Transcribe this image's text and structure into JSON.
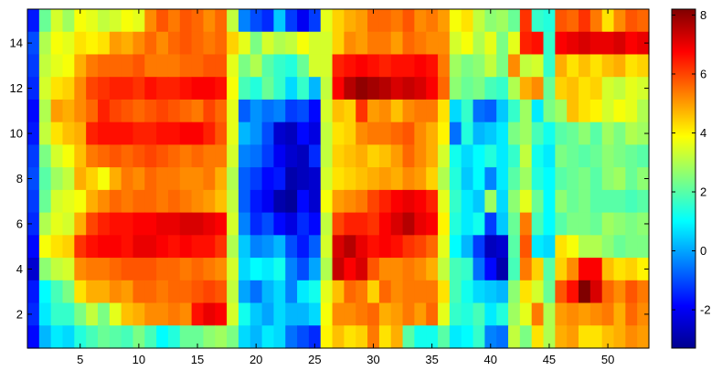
{
  "chart_data": {
    "type": "heatmap",
    "title": "",
    "xlabel": "",
    "ylabel": "",
    "x_range": [
      1,
      53
    ],
    "y_range": [
      1,
      15
    ],
    "xlim": [
      0.5,
      53.5
    ],
    "ylim": [
      0.5,
      15.5
    ],
    "x_ticks": [
      5,
      10,
      15,
      20,
      25,
      30,
      35,
      40,
      45,
      50
    ],
    "y_ticks": [
      2,
      4,
      6,
      8,
      10,
      12,
      14
    ],
    "colorbar": {
      "colormap": "jet",
      "range": [
        -3.3,
        8.2
      ],
      "ticks": [
        -2,
        0,
        2,
        4,
        6,
        8
      ]
    },
    "grid": false,
    "legend": "none",
    "region_note_values": {
      "rows_top_to_bottom": "y=15 .. y=1",
      "blocks": [
        {
          "x": [
            1,
            1
          ],
          "y": [
            1,
            15
          ],
          "level": -1.5
        },
        {
          "x": [
            2,
            4
          ],
          "y": [
            1,
            15
          ],
          "level": 3.0
        },
        {
          "x": [
            5,
            18
          ],
          "y": [
            1,
            15
          ],
          "level": 6.0
        },
        {
          "x": [
            19,
            26
          ],
          "y": [
            1,
            15
          ],
          "level": 0.0
        },
        {
          "x": [
            27,
            36
          ],
          "y": [
            1,
            15
          ],
          "level": 5.5
        },
        {
          "x": [
            37,
            45
          ],
          "y": [
            1,
            15
          ],
          "level": 1.5
        },
        {
          "x": [
            46,
            53
          ],
          "y": [
            1,
            15
          ],
          "level": 3.0
        }
      ]
    },
    "z": [
      [
        -1.6,
        2.2,
        3.4,
        2.8,
        3.8,
        3.6,
        3.2,
        3.4,
        3.8,
        3.6,
        5.2,
        5.8,
        5.4,
        5.8,
        5.6,
        5.2,
        5.6,
        3.2,
        -0.4,
        -1.0,
        -1.4,
        0.4,
        -1.2,
        -2.0,
        -1.2,
        3.6,
        4.4,
        4.8,
        5.0,
        5.6,
        5.6,
        5.4,
        5.8,
        5.2,
        5.4,
        5.0,
        3.8,
        4.2,
        3.2,
        2.6,
        2.8,
        2.2,
        6.2,
        1.6,
        1.4,
        5.8,
        5.6,
        6.2,
        5.4,
        4.2,
        5.2,
        5.8,
        5.6
      ],
      [
        -1.0,
        3.0,
        3.8,
        3.6,
        4.2,
        4.0,
        4.2,
        5.0,
        4.8,
        5.2,
        5.6,
        5.2,
        5.6,
        5.8,
        5.6,
        5.4,
        5.6,
        4.4,
        3.6,
        2.4,
        3.4,
        3.0,
        3.2,
        3.8,
        3.4,
        3.4,
        4.4,
        5.2,
        5.0,
        5.4,
        5.4,
        5.0,
        5.6,
        5.4,
        5.2,
        5.2,
        3.4,
        3.8,
        3.0,
        3.6,
        2.4,
        3.6,
        6.4,
        6.6,
        1.6,
        6.8,
        7.0,
        7.2,
        7.0,
        7.0,
        7.2,
        6.8,
        7.0
      ],
      [
        -1.2,
        3.2,
        3.6,
        3.8,
        4.8,
        5.4,
        5.6,
        5.6,
        5.6,
        5.8,
        5.4,
        5.4,
        5.4,
        5.6,
        5.6,
        5.8,
        5.8,
        3.6,
        2.4,
        3.0,
        2.0,
        1.6,
        1.4,
        2.2,
        3.4,
        3.4,
        6.4,
        6.6,
        6.8,
        6.6,
        6.4,
        6.6,
        6.6,
        6.8,
        6.6,
        5.4,
        2.8,
        2.4,
        2.6,
        3.2,
        2.4,
        5.2,
        3.2,
        3.4,
        1.6,
        4.8,
        4.2,
        4.6,
        4.2,
        4.6,
        4.8,
        4.2,
        4.4
      ],
      [
        -1.4,
        3.4,
        4.2,
        4.4,
        5.2,
        6.0,
        6.2,
        6.4,
        6.4,
        6.2,
        6.6,
        6.4,
        6.4,
        6.6,
        6.8,
        6.8,
        6.6,
        3.8,
        1.8,
        1.4,
        2.2,
        1.6,
        0.6,
        1.6,
        0.2,
        3.2,
        6.8,
        7.6,
        8.0,
        7.8,
        7.6,
        7.2,
        7.4,
        7.2,
        6.8,
        5.6,
        2.6,
        2.2,
        2.4,
        1.8,
        1.6,
        3.0,
        4.8,
        5.2,
        2.2,
        4.4,
        4.6,
        4.2,
        4.4,
        3.4,
        3.2,
        3.6,
        3.4
      ],
      [
        -1.8,
        3.0,
        5.0,
        4.8,
        5.2,
        5.6,
        6.4,
        6.0,
        5.8,
        5.6,
        5.8,
        6.0,
        5.8,
        5.6,
        5.4,
        6.0,
        5.6,
        3.6,
        -0.8,
        -0.2,
        -0.6,
        -0.4,
        -1.2,
        -1.0,
        -1.8,
        3.4,
        4.6,
        4.4,
        6.2,
        5.0,
        5.2,
        4.6,
        5.2,
        5.4,
        5.4,
        4.2,
        0.6,
        1.6,
        -0.6,
        -0.8,
        0.4,
        1.6,
        2.8,
        0.8,
        2.4,
        2.8,
        4.6,
        4.2,
        4.0,
        3.4,
        3.8,
        3.6,
        3.0
      ],
      [
        -1.6,
        3.2,
        4.2,
        4.6,
        4.8,
        6.4,
        6.6,
        6.6,
        6.6,
        6.4,
        6.4,
        6.6,
        6.6,
        6.8,
        6.8,
        6.4,
        5.8,
        3.6,
        0.2,
        -0.2,
        -1.0,
        -2.4,
        -2.6,
        -1.8,
        -2.2,
        3.2,
        4.2,
        4.4,
        5.2,
        5.4,
        5.4,
        5.6,
        5.8,
        5.2,
        4.8,
        4.0,
        -0.6,
        1.4,
        0.2,
        0.4,
        0.8,
        2.4,
        2.8,
        1.8,
        1.2,
        2.0,
        2.2,
        2.6,
        2.0,
        2.8,
        2.4,
        3.0,
        2.8
      ],
      [
        -1.2,
        2.4,
        3.4,
        3.8,
        4.6,
        5.4,
        5.6,
        5.8,
        5.6,
        5.8,
        6.0,
        5.8,
        5.6,
        5.4,
        5.6,
        5.4,
        5.4,
        3.4,
        -0.4,
        -0.6,
        -1.2,
        -2.0,
        -2.4,
        -2.6,
        -1.4,
        3.2,
        4.4,
        4.6,
        4.8,
        4.4,
        4.6,
        5.0,
        5.6,
        5.2,
        4.8,
        3.4,
        1.2,
        0.6,
        1.0,
        1.4,
        0.8,
        1.6,
        3.2,
        1.2,
        0.8,
        2.4,
        2.2,
        2.0,
        2.2,
        2.6,
        2.4,
        2.2,
        2.0
      ],
      [
        -1.0,
        2.0,
        2.8,
        3.2,
        4.8,
        4.4,
        3.8,
        4.8,
        5.4,
        5.2,
        5.6,
        5.4,
        5.4,
        5.2,
        5.2,
        5.4,
        4.8,
        3.0,
        -0.8,
        -1.2,
        -1.8,
        -1.6,
        -2.8,
        -2.6,
        -2.4,
        3.4,
        4.2,
        4.4,
        4.6,
        4.8,
        5.0,
        4.8,
        5.2,
        5.0,
        4.4,
        3.0,
        1.4,
        0.4,
        1.0,
        -0.4,
        0.8,
        2.0,
        2.8,
        1.4,
        1.0,
        2.0,
        2.2,
        2.4,
        2.0,
        2.6,
        2.8,
        2.2,
        2.6
      ],
      [
        -1.2,
        2.2,
        3.4,
        3.6,
        3.8,
        4.8,
        5.2,
        5.6,
        5.4,
        5.6,
        5.6,
        5.4,
        5.6,
        5.4,
        5.2,
        5.0,
        4.6,
        3.2,
        -0.8,
        -1.6,
        -2.0,
        -2.8,
        -3.0,
        -1.8,
        -2.4,
        3.8,
        5.0,
        5.2,
        5.4,
        6.0,
        6.4,
        6.8,
        7.0,
        6.8,
        6.4,
        3.6,
        1.6,
        0.8,
        0.4,
        2.8,
        0.6,
        2.6,
        3.6,
        2.2,
        1.0,
        2.6,
        2.2,
        2.4,
        2.0,
        2.0,
        2.0,
        1.8,
        2.0
      ],
      [
        -1.4,
        3.0,
        3.6,
        3.4,
        4.8,
        6.0,
        6.4,
        6.6,
        6.6,
        6.8,
        6.8,
        7.0,
        7.0,
        7.2,
        7.2,
        7.0,
        6.8,
        3.4,
        -0.4,
        -1.4,
        -1.0,
        -1.8,
        -2.2,
        -1.4,
        -1.8,
        3.2,
        6.0,
        6.4,
        6.4,
        6.2,
        6.8,
        7.2,
        7.6,
        7.0,
        6.8,
        4.0,
        1.4,
        0.8,
        1.2,
        -1.2,
        0.4,
        2.2,
        5.4,
        1.8,
        1.0,
        2.0,
        2.4,
        2.4,
        2.2,
        2.8,
        2.6,
        2.4,
        2.6
      ],
      [
        -1.8,
        3.8,
        4.2,
        4.4,
        6.2,
        6.6,
        6.8,
        6.8,
        6.6,
        7.0,
        7.0,
        6.8,
        6.6,
        6.8,
        6.6,
        6.6,
        6.2,
        3.0,
        0.4,
        -0.4,
        -0.2,
        0.2,
        -1.0,
        -1.6,
        -0.8,
        3.4,
        7.2,
        7.6,
        7.0,
        6.6,
        6.8,
        6.6,
        6.2,
        6.0,
        5.6,
        3.6,
        1.0,
        0.2,
        -1.2,
        -2.6,
        -2.4,
        2.0,
        5.8,
        0.8,
        0.6,
        4.2,
        3.8,
        3.0,
        3.0,
        2.6,
        2.2,
        2.4,
        2.4
      ],
      [
        -2.4,
        2.6,
        3.2,
        3.4,
        5.2,
        5.4,
        5.4,
        5.6,
        5.8,
        5.8,
        5.8,
        5.6,
        5.6,
        5.4,
        5.6,
        5.4,
        5.2,
        3.4,
        0.6,
        1.0,
        0.8,
        1.2,
        -0.4,
        -1.0,
        0.0,
        3.0,
        7.4,
        6.8,
        7.2,
        5.8,
        5.2,
        5.2,
        5.4,
        5.2,
        4.8,
        3.2,
        1.8,
        1.6,
        -0.6,
        -1.8,
        -2.8,
        1.8,
        5.4,
        4.4,
        2.0,
        4.4,
        5.2,
        6.8,
        6.8,
        4.6,
        4.2,
        4.4,
        4.0
      ],
      [
        -1.6,
        1.0,
        1.8,
        2.4,
        4.2,
        4.8,
        4.8,
        5.2,
        5.0,
        5.6,
        5.6,
        5.4,
        5.6,
        5.6,
        5.8,
        6.0,
        5.8,
        3.2,
        0.0,
        -0.6,
        0.2,
        0.6,
        -0.4,
        0.8,
        1.2,
        3.6,
        4.6,
        5.6,
        5.4,
        4.4,
        5.6,
        5.2,
        5.4,
        5.4,
        5.4,
        4.2,
        1.8,
        1.2,
        0.6,
        0.4,
        0.2,
        2.6,
        4.2,
        3.4,
        2.2,
        5.8,
        6.6,
        8.2,
        7.2,
        5.6,
        5.2,
        5.8,
        5.4
      ],
      [
        -1.4,
        0.8,
        1.6,
        1.6,
        2.4,
        3.2,
        2.4,
        3.6,
        4.6,
        4.8,
        5.2,
        5.2,
        5.4,
        5.2,
        6.6,
        7.0,
        6.8,
        3.4,
        1.2,
        0.4,
        0.0,
        0.6,
        0.2,
        0.2,
        0.6,
        3.8,
        5.2,
        5.2,
        5.4,
        5.6,
        4.8,
        5.0,
        5.4,
        5.0,
        5.6,
        3.6,
        1.6,
        1.4,
        1.8,
        0.8,
        1.4,
        2.8,
        3.6,
        5.4,
        3.0,
        5.0,
        5.2,
        5.0,
        5.2,
        5.4,
        4.8,
        5.6,
        5.2
      ],
      [
        -1.8,
        0.2,
        0.8,
        0.6,
        1.4,
        1.8,
        2.2,
        2.0,
        1.8,
        2.4,
        1.8,
        1.0,
        1.4,
        2.2,
        2.2,
        2.6,
        2.8,
        2.4,
        0.6,
        0.2,
        0.8,
        0.6,
        -0.6,
        -1.0,
        -1.4,
        4.0,
        4.6,
        4.2,
        4.4,
        5.4,
        4.2,
        4.8,
        2.0,
        1.2,
        1.2,
        2.0,
        0.8,
        1.0,
        1.6,
        -0.4,
        -0.6,
        3.2,
        2.4,
        4.2,
        3.0,
        4.8,
        5.0,
        4.2,
        4.2,
        4.6,
        4.8,
        5.2,
        5.0
      ]
    ]
  }
}
